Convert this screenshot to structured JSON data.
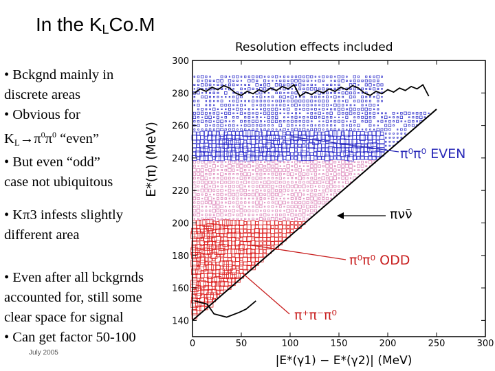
{
  "slide": {
    "title_main": "In the K",
    "title_sub": "L",
    "title_end": "Co.M",
    "footer": "July 2005",
    "bullets": {
      "b1_l1": "• Bckgnd mainly in",
      "b1_l2": "discrete areas",
      "b2_l1": "• Obvious for",
      "b2_k": "K",
      "b2_ksub": "L",
      "b2_arrow": "→",
      "b2_pi1": "π",
      "b2_pi2": "π",
      "b2_sup": "0",
      "b2_even": " “even”",
      "b3_l1": "• But even “odd”",
      "b3_l2": "case not ubiquitous",
      "b4_l1": "• Kπ3 infests slightly",
      "b4_l2": "different area",
      "b5_l1": "• Even after all bckgrnds",
      "b5_l2": "accounted for, still some",
      "b5_l3": "clear space for signal",
      "b6_l1": "• Can get factor 50-100"
    }
  },
  "chart_data": {
    "type": "scatter",
    "title": "Resolution effects included",
    "xlabel": "|E*(γ1) − E*(γ2)|  (MeV)",
    "ylabel": "E*(π)  (MeV)",
    "xlim": [
      0,
      300
    ],
    "ylim": [
      130,
      300
    ],
    "xticks": [
      "0",
      "50",
      "100",
      "150",
      "200",
      "250",
      "300"
    ],
    "yticks": [
      "140",
      "160",
      "180",
      "200",
      "220",
      "240",
      "260",
      "280",
      "300"
    ],
    "regions": [
      {
        "name": "π0π0 EVEN",
        "color": "#3333cc",
        "y_range": [
          238,
          256
        ],
        "x_range": [
          0,
          195
        ]
      },
      {
        "name": "π0π0 ODD",
        "color": "#dd2222",
        "y_range": [
          140,
          200
        ],
        "x_range": [
          0,
          120
        ]
      },
      {
        "name": "π+π−π0",
        "color": "#000000",
        "y_range": [
          140,
          150
        ],
        "x_range": [
          0,
          40
        ]
      }
    ],
    "kinematic_limit": {
      "x": [
        0,
        250
      ],
      "y": [
        140,
        270
      ]
    },
    "annotations": {
      "even_label": "π⁰π⁰ EVEN",
      "pinunu_label": "πνν̄",
      "odd_label": "π⁰π⁰ ODD",
      "kpi3_label": "π⁺π⁻π⁰"
    },
    "colors": {
      "even": "#3333cc",
      "odd": "#dd2222",
      "pink": "#dd88bb",
      "outline": "#000000"
    }
  }
}
